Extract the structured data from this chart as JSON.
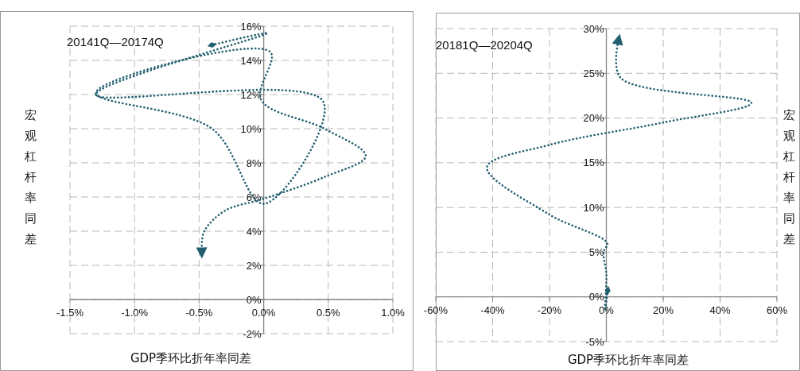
{
  "chart_data": [
    {
      "type": "line",
      "annotations": [
        "20141Q—20174Q"
      ],
      "xlabel": "GDP季环比折年率同差",
      "ylabel": "宏观杠杆率同差",
      "series": [
        {
          "color": "#215f6e",
          "x": [
            -0.4,
            0.03,
            -1.3,
            0.46,
            0.0,
            -0.4,
            -1.3,
            0.05,
            -0.02,
            0.47,
            0.79,
            0.48,
            0.0,
            -0.3,
            -0.46,
            -0.48
          ],
          "values": [
            14.9,
            15.6,
            12.0,
            11.6,
            5.6,
            10.0,
            12.1,
            14.5,
            11.7,
            10.0,
            8.4,
            7.2,
            5.9,
            5.2,
            4.0,
            3.0
          ]
        }
      ],
      "xlim": [
        -1.5,
        1.0
      ],
      "xticks": [
        {
          "value": -1.5,
          "label": "-1.5%"
        },
        {
          "value": -1.0,
          "label": "-1.0%"
        },
        {
          "value": -0.5,
          "label": "-0.5%"
        },
        {
          "value": 0,
          "label": "0.0%"
        },
        {
          "value": 0.5,
          "label": "0.5%"
        },
        {
          "value": 1.0,
          "label": "1.0%"
        }
      ],
      "ylim": [
        -2,
        16
      ],
      "yticks": [
        {
          "value": -2,
          "label": "-2%"
        },
        {
          "value": 0,
          "label": "0%"
        },
        {
          "value": 2,
          "label": "2%"
        },
        {
          "value": 4,
          "label": "4%"
        },
        {
          "value": 6,
          "label": "6%"
        },
        {
          "value": 8,
          "label": "8%"
        },
        {
          "value": 10,
          "label": "10%"
        },
        {
          "value": 12,
          "label": "12%"
        },
        {
          "value": 14,
          "label": "14%"
        },
        {
          "value": 16,
          "label": "16%"
        }
      ],
      "grid": true,
      "line_style": "dotted",
      "marker": "none"
    },
    {
      "type": "line",
      "annotations": [
        "20181Q—20204Q"
      ],
      "xlabel": "GDP季环比折年率同差",
      "ylabel": "宏观杠杆率同差",
      "series": [
        {
          "color": "#215f6e",
          "x": [
            0.5,
            -0.5,
            0,
            -1,
            0.3,
            -20,
            -42,
            -20,
            20,
            51,
            5,
            4
          ],
          "values": [
            0.7,
            -1.5,
            2.5,
            5,
            6,
            9.2,
            14.5,
            17,
            19.5,
            21.7,
            24.5,
            28.3
          ]
        }
      ],
      "xlim": [
        -60,
        60
      ],
      "xticks": [
        {
          "value": -60,
          "label": "-60%"
        },
        {
          "value": -40,
          "label": "-40%"
        },
        {
          "value": -20,
          "label": "-20%"
        },
        {
          "value": 0,
          "label": "0%"
        },
        {
          "value": 20,
          "label": "20%"
        },
        {
          "value": 40,
          "label": "40%"
        },
        {
          "value": 60,
          "label": "60%"
        }
      ],
      "ylim": [
        -5,
        30
      ],
      "yticks": [
        {
          "value": -5,
          "label": "-5%"
        },
        {
          "value": 0,
          "label": "0%"
        },
        {
          "value": 5,
          "label": "5%"
        },
        {
          "value": 10,
          "label": "10%"
        },
        {
          "value": 15,
          "label": "15%"
        },
        {
          "value": 20,
          "label": "20%"
        },
        {
          "value": 25,
          "label": "25%"
        },
        {
          "value": 30,
          "label": "30%"
        }
      ],
      "grid": true,
      "line_style": "dotted",
      "marker": "none"
    }
  ]
}
